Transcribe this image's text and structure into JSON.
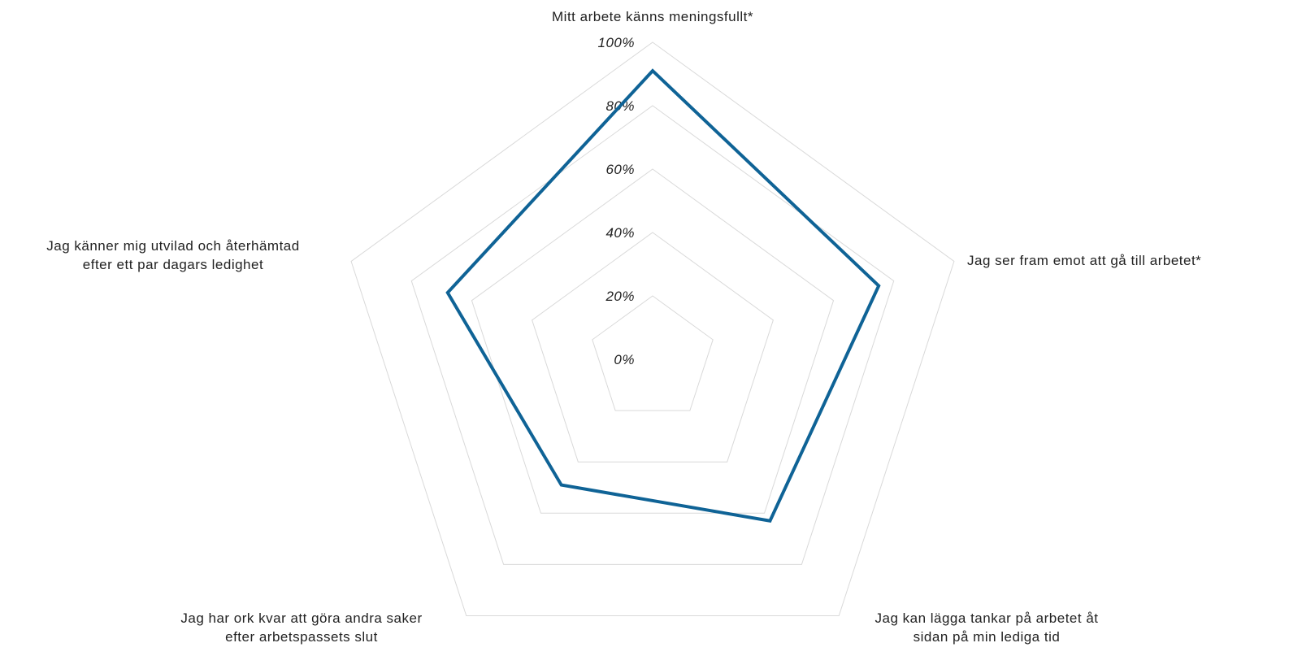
{
  "chart_data": {
    "type": "radar",
    "categories": [
      [
        "Mitt arbete känns meningsfullt*"
      ],
      [
        "Jag ser fram emot att gå till arbetet*"
      ],
      [
        "Jag kan lägga tankar på arbetet åt",
        "sidan på min lediga tid"
      ],
      [
        "Jag har ork kvar att göra andra saker",
        "efter arbetspassets slut"
      ],
      [
        "Jag känner mig utvilad och återhämtad",
        "efter ett par dagars ledighet"
      ]
    ],
    "values": [
      91,
      75,
      63,
      49,
      68
    ],
    "color": "#0f6396",
    "ylim": [
      0,
      100
    ],
    "yticks": [
      {
        "value": 0,
        "label": "0%"
      },
      {
        "value": 20,
        "label": "20%"
      },
      {
        "value": 40,
        "label": "40%"
      },
      {
        "value": 60,
        "label": "60%"
      },
      {
        "value": 80,
        "label": "80%"
      },
      {
        "value": 100,
        "label": "100%"
      }
    ],
    "grid": true
  }
}
